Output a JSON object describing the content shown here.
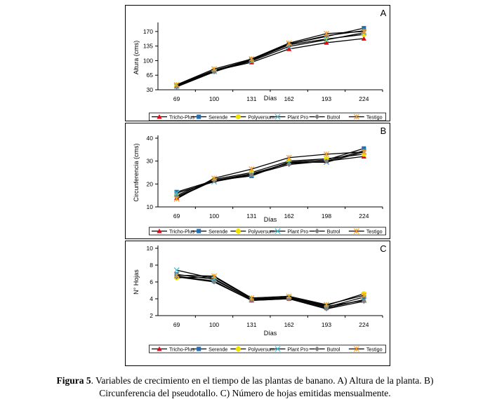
{
  "caption": {
    "label": "Figura 5",
    "line1": ". Variables de crecimiento en el tiempo de las plantas de banano. A) Altura de la planta. B)",
    "line2": "Circunferencia del pseudotallo. C) Número de hojas emitidas mensualmente."
  },
  "legend_items": [
    "Tricho-Plus",
    "Serende",
    "Polyversum",
    "Plant Pro",
    "Butrol",
    "Testigo"
  ],
  "series_colors": [
    "#e30613",
    "#1f6fb5",
    "#f2e200",
    "#4db8c8",
    "#808080",
    "#f0a030"
  ],
  "chart_data": [
    {
      "type": "line",
      "panel_letter": "A",
      "ylabel": "Altura (cms)",
      "xlabel": "Días",
      "categories": [
        "69",
        "100",
        "131",
        "162",
        "193",
        "224"
      ],
      "yticks": [
        30,
        65,
        100,
        135,
        170
      ],
      "ylim": [
        30,
        185
      ],
      "series": [
        {
          "name": "Tricho-Plus",
          "values": [
            40,
            76,
            96,
            128,
            143,
            153
          ]
        },
        {
          "name": "Serende",
          "values": [
            38,
            75,
            103,
            140,
            158,
            178
          ]
        },
        {
          "name": "Polyversum",
          "values": [
            41,
            77,
            101,
            138,
            152,
            163
          ]
        },
        {
          "name": "Plant Pro",
          "values": [
            39,
            74,
            99,
            134,
            150,
            167
          ]
        },
        {
          "name": "Butrol",
          "values": [
            37,
            73,
            102,
            140,
            160,
            172
          ]
        },
        {
          "name": "Testigo",
          "values": [
            42,
            80,
            104,
            142,
            165,
            170
          ]
        }
      ]
    },
    {
      "type": "line",
      "panel_letter": "B",
      "ylabel": "Circunferencia (cms)",
      "xlabel": "Días",
      "categories": [
        "69",
        "100",
        "131",
        "162",
        "198",
        "224"
      ],
      "yticks": [
        10,
        20,
        30,
        40
      ],
      "ylim": [
        10,
        40
      ],
      "series": [
        {
          "name": "Tricho-Plus",
          "values": [
            14,
            21.5,
            24.5,
            29,
            30,
            32
          ]
        },
        {
          "name": "Serende",
          "values": [
            16.5,
            21.5,
            23.5,
            29.5,
            30.5,
            35.5
          ]
        },
        {
          "name": "Polyversum",
          "values": [
            15,
            22,
            25,
            30,
            31,
            33
          ]
        },
        {
          "name": "Plant Pro",
          "values": [
            16,
            21,
            24,
            29.5,
            29.5,
            34
          ]
        },
        {
          "name": "Butrol",
          "values": [
            14.5,
            21.5,
            24,
            28.5,
            30,
            34.5
          ]
        },
        {
          "name": "Testigo",
          "values": [
            13.5,
            22.5,
            26.5,
            31.5,
            33,
            34
          ]
        }
      ]
    },
    {
      "type": "line",
      "panel_letter": "C",
      "ylabel": "N° Hojas",
      "xlabel": "Días",
      "categories": [
        "69",
        "100",
        "131",
        "162",
        "193",
        "224"
      ],
      "yticks": [
        2,
        4,
        6,
        8,
        10
      ],
      "ylim": [
        2,
        10
      ],
      "series": [
        {
          "name": "Tricho-Plus",
          "values": [
            6.7,
            6.1,
            3.8,
            4.0,
            2.9,
            3.9
          ]
        },
        {
          "name": "Serende",
          "values": [
            6.9,
            6.3,
            3.9,
            4.1,
            3.0,
            4.2
          ]
        },
        {
          "name": "Polyversum",
          "values": [
            6.5,
            6.6,
            4.0,
            4.2,
            3.2,
            4.6
          ]
        },
        {
          "name": "Plant Pro",
          "values": [
            7.4,
            6.4,
            3.9,
            4.1,
            3.1,
            3.8
          ]
        },
        {
          "name": "Butrol",
          "values": [
            6.6,
            6.0,
            3.8,
            4.0,
            2.8,
            3.7
          ]
        },
        {
          "name": "Testigo",
          "values": [
            6.8,
            6.7,
            4.1,
            4.3,
            3.3,
            4.4
          ]
        }
      ]
    }
  ]
}
